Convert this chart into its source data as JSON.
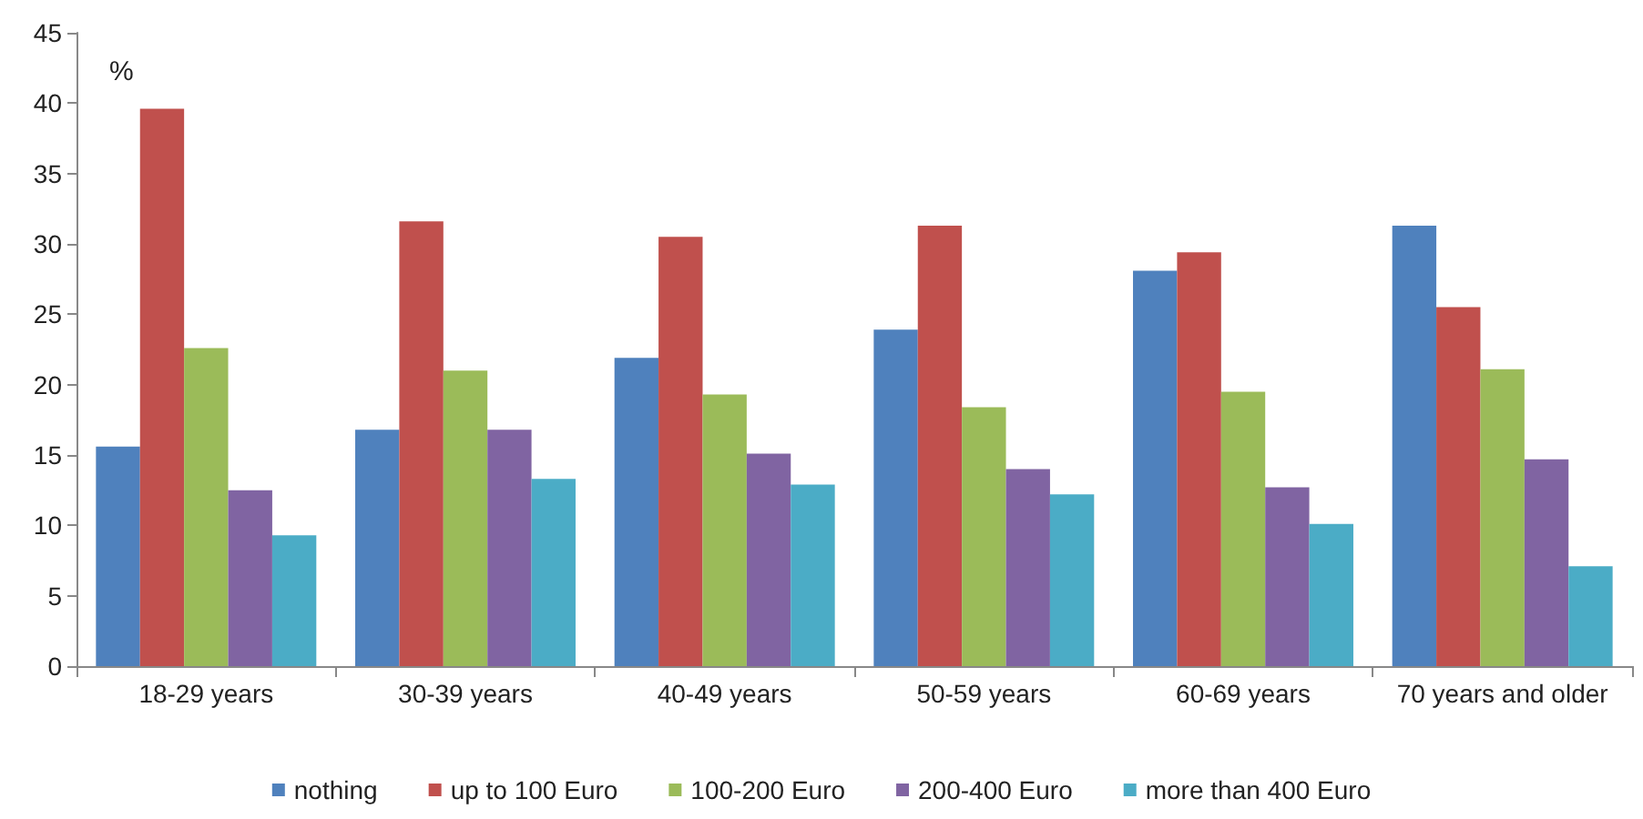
{
  "chart_data": {
    "type": "bar",
    "ylabel": "%",
    "categories": [
      "18-29 years",
      "30-39 years",
      "40-49 years",
      "50-59 years",
      "60-69 years",
      "70 years and older"
    ],
    "series": [
      {
        "name": "nothing",
        "color": "#4f81bd",
        "values": [
          15.6,
          16.8,
          21.9,
          23.9,
          28.1,
          31.3
        ]
      },
      {
        "name": "up to 100 Euro",
        "color": "#c0504d",
        "values": [
          39.6,
          31.6,
          30.5,
          31.3,
          29.4,
          25.5
        ]
      },
      {
        "name": "100-200 Euro",
        "color": "#9bbb59",
        "values": [
          22.6,
          21.0,
          19.3,
          18.4,
          19.5,
          21.1
        ]
      },
      {
        "name": "200-400 Euro",
        "color": "#8064a2",
        "values": [
          12.5,
          16.8,
          15.1,
          14.0,
          12.7,
          14.7
        ]
      },
      {
        "name": "more than 400 Euro",
        "color": "#4bacc6",
        "values": [
          9.3,
          13.3,
          12.9,
          12.2,
          10.1,
          7.1
        ]
      }
    ],
    "ylim": [
      0,
      45
    ],
    "yticks": [
      0,
      5,
      10,
      15,
      20,
      25,
      30,
      35,
      40,
      45
    ],
    "grid": false,
    "legend": "bottom"
  }
}
